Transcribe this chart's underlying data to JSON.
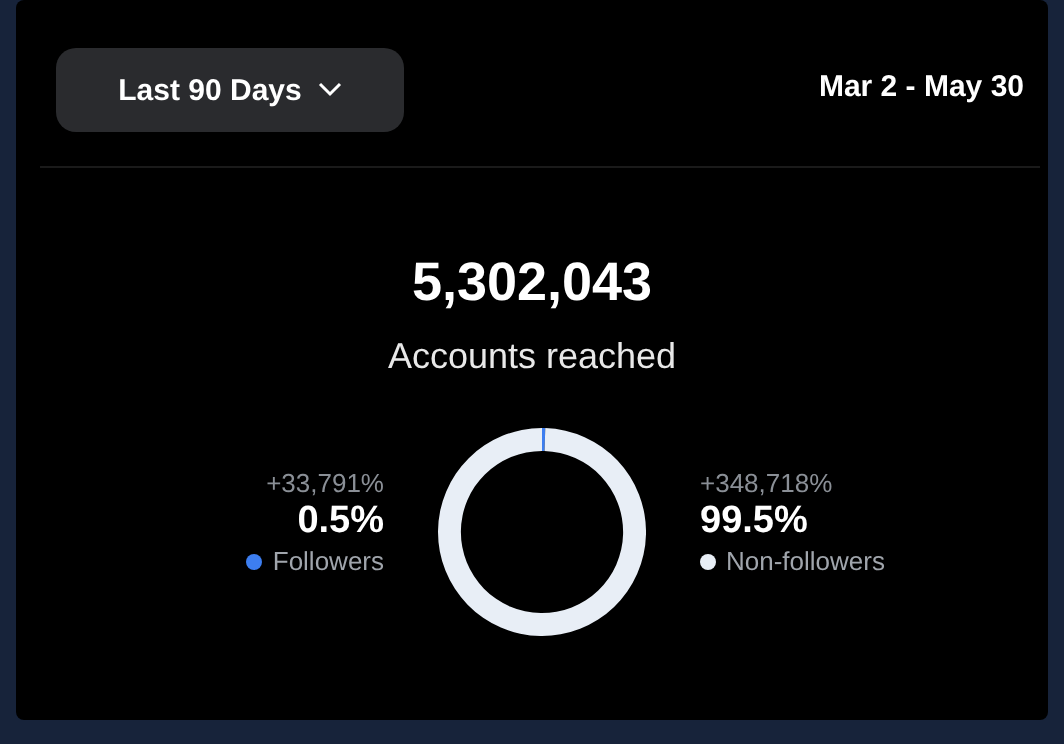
{
  "chart_data": {
    "type": "donut",
    "title": "5,302,043",
    "subtitle": "Accounts reached",
    "categories": [
      "Followers",
      "Non-followers"
    ],
    "values": [
      0.5,
      99.5
    ],
    "colors": [
      "#3d7ef0",
      "#e8eef6"
    ],
    "value_labels": [
      "0.5%",
      "99.5%"
    ],
    "legend": "bottom",
    "annotations": [
      "Last 90 Days",
      "Mar 2 - May 30",
      "+33,791%",
      "+348,718%"
    ]
  }
}
